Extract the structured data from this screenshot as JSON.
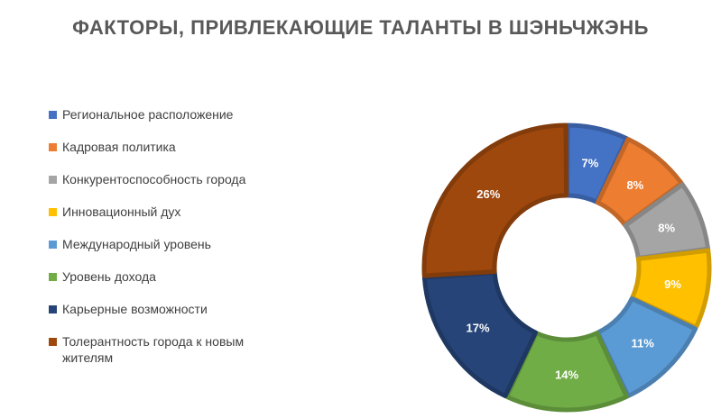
{
  "chart_data": {
    "type": "pie",
    "title": "ФАКТОРЫ, ПРИВЛЕКАЮЩИЕ ТАЛАНТЫ В ШЭНЬЧЖЭНЬ",
    "categories": [
      "Региональное расположение",
      "Кадровая политика",
      "Конкурентоспособность города",
      "Инновационный дух",
      "Международный уровень",
      "Уровень дохода",
      "Карьерные возможности",
      "Толерантность города к новым жителям"
    ],
    "values": [
      7,
      8,
      8,
      9,
      11,
      14,
      17,
      26
    ],
    "labels": [
      "7%",
      "8%",
      "8%",
      "9%",
      "11%",
      "14%",
      "17%",
      "26%"
    ],
    "colors": [
      "#4472C4",
      "#ED7D31",
      "#A5A5A5",
      "#FFC000",
      "#5B9BD5",
      "#70AD47",
      "#264478",
      "#9E480E"
    ],
    "legend_position": "left",
    "hole": "donut"
  }
}
